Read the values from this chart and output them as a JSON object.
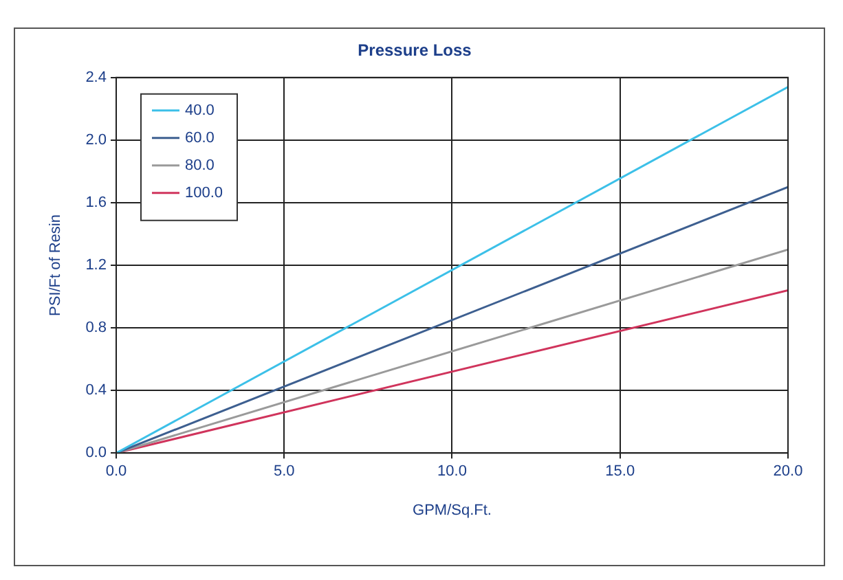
{
  "chart_data": {
    "type": "line",
    "title": "Pressure Loss",
    "xlabel": "GPM/Sq.Ft.",
    "ylabel": "PSI/Ft of Resin",
    "x": [
      0,
      20
    ],
    "series": [
      {
        "name": "40.0",
        "color": "#3cc0e8",
        "values": [
          0,
          2.34
        ]
      },
      {
        "name": "60.0",
        "color": "#3d5f90",
        "values": [
          0,
          1.7
        ]
      },
      {
        "name": "80.0",
        "color": "#9a9a9a",
        "values": [
          0,
          1.3
        ]
      },
      {
        "name": "100.0",
        "color": "#d0345c",
        "values": [
          0,
          1.04
        ]
      }
    ],
    "xlim": [
      0,
      20
    ],
    "xticks": [
      {
        "value": 0,
        "label": "0.0"
      },
      {
        "value": 5,
        "label": "5.0"
      },
      {
        "value": 10,
        "label": "10.0"
      },
      {
        "value": 15,
        "label": "15.0"
      },
      {
        "value": 20,
        "label": "20.0"
      }
    ],
    "ylim": [
      0,
      2.4
    ],
    "yticks": [
      {
        "value": 0,
        "label": "0.0"
      },
      {
        "value": 0.4,
        "label": "0.4"
      },
      {
        "value": 0.8,
        "label": "0.8"
      },
      {
        "value": 1.2,
        "label": "1.2"
      },
      {
        "value": 1.6,
        "label": "1.6"
      },
      {
        "value": 2.0,
        "label": "2.0"
      },
      {
        "value": 2.4,
        "label": "2.4"
      }
    ],
    "grid": true,
    "legend": "top left",
    "marker": "none",
    "line_style": "solid"
  }
}
